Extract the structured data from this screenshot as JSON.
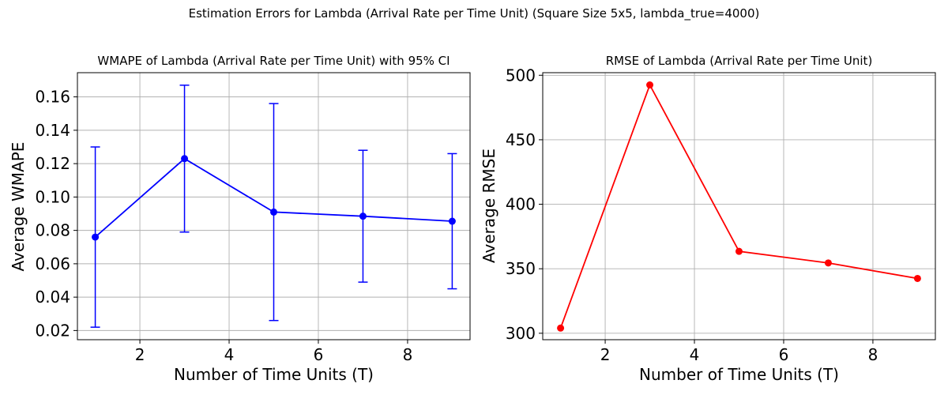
{
  "figure": {
    "suptitle": "Estimation Errors for Lambda (Arrival Rate per Time Unit) (Square Size 5x5, lambda_true=4000)"
  },
  "chart_data": [
    {
      "type": "line",
      "title": "WMAPE of Lambda (Arrival Rate per Time Unit) with 95% CI",
      "xlabel": "Number of Time Units (T)",
      "ylabel": "Average WMAPE",
      "x": [
        1,
        3,
        5,
        7,
        9
      ],
      "series": [
        {
          "values": [
            0.076,
            0.123,
            0.091,
            0.0885,
            0.0855
          ],
          "ci_lower": [
            0.022,
            0.079,
            0.026,
            0.049,
            0.045
          ],
          "ci_upper": [
            0.13,
            0.167,
            0.156,
            0.128,
            0.126
          ],
          "color": "#0000ff",
          "marker": "circle"
        }
      ],
      "xlim": [
        0.6,
        9.4
      ],
      "ylim": [
        0.0145,
        0.1745
      ],
      "xticks": [
        2,
        4,
        6,
        8
      ],
      "xtick_labels": [
        "2",
        "4",
        "6",
        "8"
      ],
      "yticks": [
        0.02,
        0.04,
        0.06,
        0.08,
        0.1,
        0.12,
        0.14,
        0.16
      ],
      "ytick_labels": [
        "0.02",
        "0.04",
        "0.06",
        "0.08",
        "0.10",
        "0.12",
        "0.14",
        "0.16"
      ],
      "grid": true
    },
    {
      "type": "line",
      "title": "RMSE of Lambda (Arrival Rate per Time Unit)",
      "xlabel": "Number of Time Units (T)",
      "ylabel": "Average RMSE",
      "x": [
        1,
        3,
        5,
        7,
        9
      ],
      "series": [
        {
          "values": [
            304,
            492.5,
            363.5,
            354.5,
            342.5
          ],
          "color": "#ff0000",
          "marker": "circle"
        }
      ],
      "xlim": [
        0.6,
        9.4
      ],
      "ylim": [
        295,
        502
      ],
      "xticks": [
        2,
        4,
        6,
        8
      ],
      "xtick_labels": [
        "2",
        "4",
        "6",
        "8"
      ],
      "yticks": [
        300,
        350,
        400,
        450,
        500
      ],
      "ytick_labels": [
        "300",
        "350",
        "400",
        "450",
        "500"
      ],
      "grid": true
    }
  ]
}
